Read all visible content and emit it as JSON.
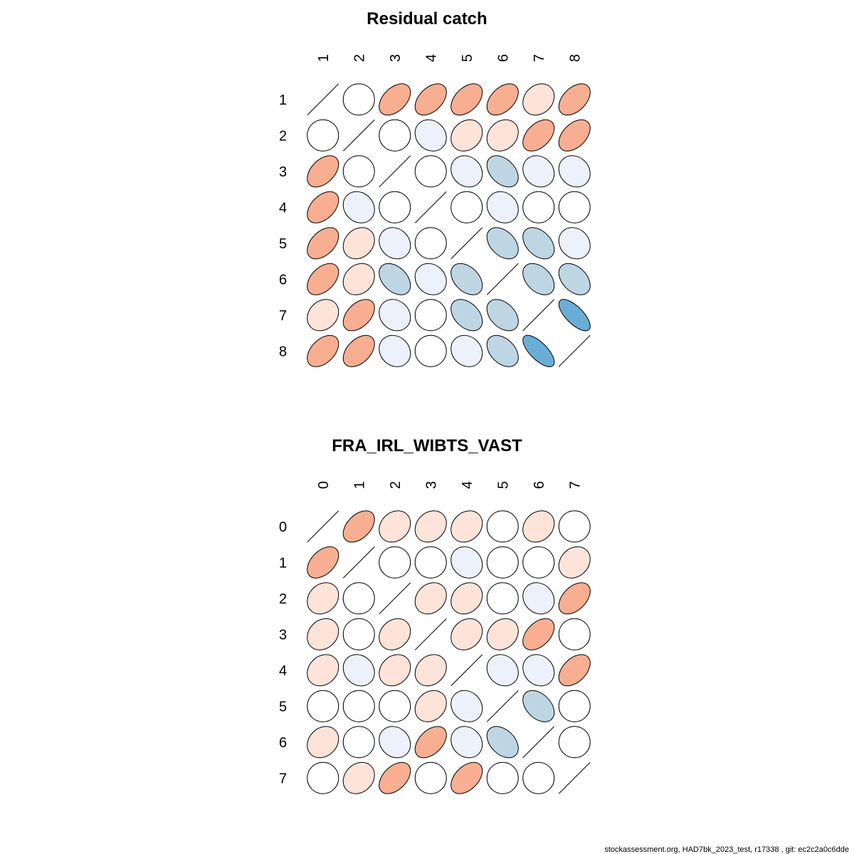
{
  "footer": "stockassessment.org, HAD7bk_2023_test, r17338 , git: ec2c2a0c6dde",
  "palette": {
    "none": "#ffffff",
    "weak_pos": "#fde3d8",
    "mid_pos": "#f8ae91",
    "weak_neg": "#edf1fc",
    "mid_neg": "#bed5e4",
    "strong_neg": "#6aaed7"
  },
  "chart_data": [
    {
      "type": "heatmap",
      "title": "Residual catch",
      "labels": [
        "1",
        "2",
        "3",
        "4",
        "5",
        "6",
        "7",
        "8"
      ],
      "matrix": [
        [
          1.0,
          0.0,
          0.45,
          0.45,
          0.45,
          0.45,
          0.2,
          0.45
        ],
        [
          0.0,
          1.0,
          0.0,
          -0.15,
          0.2,
          0.2,
          0.45,
          0.45
        ],
        [
          0.45,
          0.0,
          1.0,
          0.0,
          -0.15,
          -0.4,
          -0.15,
          -0.15
        ],
        [
          0.45,
          -0.15,
          0.0,
          1.0,
          0.0,
          -0.15,
          0.0,
          0.0
        ],
        [
          0.45,
          0.2,
          -0.15,
          0.0,
          1.0,
          -0.4,
          -0.4,
          -0.15
        ],
        [
          0.45,
          0.2,
          -0.4,
          -0.15,
          -0.4,
          1.0,
          -0.4,
          -0.4
        ],
        [
          0.2,
          0.45,
          -0.15,
          0.0,
          -0.4,
          -0.4,
          1.0,
          -0.7
        ],
        [
          0.45,
          0.45,
          -0.15,
          0.0,
          -0.15,
          -0.4,
          -0.7,
          1.0
        ]
      ]
    },
    {
      "type": "heatmap",
      "title": "FRA_IRL_WIBTS_VAST",
      "labels": [
        "0",
        "1",
        "2",
        "3",
        "4",
        "5",
        "6",
        "7"
      ],
      "matrix": [
        [
          1.0,
          0.45,
          0.2,
          0.2,
          0.2,
          0.0,
          0.2,
          0.0
        ],
        [
          0.45,
          1.0,
          0.0,
          0.0,
          -0.15,
          0.0,
          0.0,
          0.2
        ],
        [
          0.2,
          0.0,
          1.0,
          0.2,
          0.2,
          0.0,
          -0.15,
          0.45
        ],
        [
          0.2,
          0.0,
          0.2,
          1.0,
          0.2,
          0.2,
          0.45,
          0.0
        ],
        [
          0.2,
          -0.15,
          0.2,
          0.2,
          1.0,
          -0.15,
          -0.15,
          0.45
        ],
        [
          0.0,
          0.0,
          0.0,
          0.2,
          -0.15,
          1.0,
          -0.4,
          0.0
        ],
        [
          0.2,
          0.0,
          -0.15,
          0.45,
          -0.15,
          -0.4,
          1.0,
          0.0
        ],
        [
          0.0,
          0.2,
          0.45,
          0.0,
          0.45,
          0.0,
          0.0,
          1.0
        ]
      ]
    }
  ]
}
